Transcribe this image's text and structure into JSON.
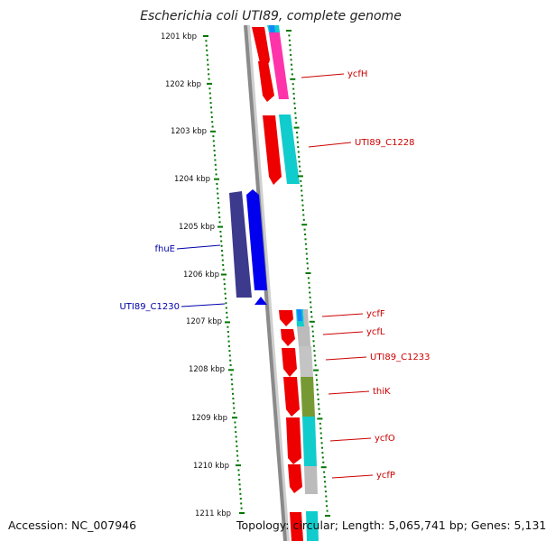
{
  "title": "Escherichia coli UTI89, complete genome",
  "footer": {
    "accession": "Accession: NC_007946",
    "stats": "Topology: circular; Length: 5,065,741 bp; Genes: 5,131"
  },
  "colors": {
    "backbone": "#888888",
    "forward_cds": "#ff0000",
    "label_red": "#cc0000",
    "label_blue": "#0000aa",
    "tick": "#007700"
  },
  "ruler": {
    "ticks": [
      "1201 kbp",
      "1202 kbp",
      "1203 kbp",
      "1204 kbp",
      "1205 kbp",
      "1206 kbp",
      "1207 kbp",
      "1208 kbp",
      "1209 kbp",
      "1210 kbp",
      "1211 kbp"
    ]
  },
  "genes": [
    {
      "label": "ycfH",
      "strand": "forward"
    },
    {
      "label": "UTI89_C1228",
      "strand": "forward"
    },
    {
      "label": "fhuE",
      "strand": "reverse"
    },
    {
      "label": "UTI89_C1230",
      "strand": "reverse"
    },
    {
      "label": "ycfF",
      "strand": "forward"
    },
    {
      "label": "ycfL",
      "strand": "forward"
    },
    {
      "label": "UTI89_C1233",
      "strand": "forward"
    },
    {
      "label": "thiK",
      "strand": "forward"
    },
    {
      "label": "ycfO",
      "strand": "forward"
    },
    {
      "label": "ycfP",
      "strand": "forward"
    }
  ]
}
